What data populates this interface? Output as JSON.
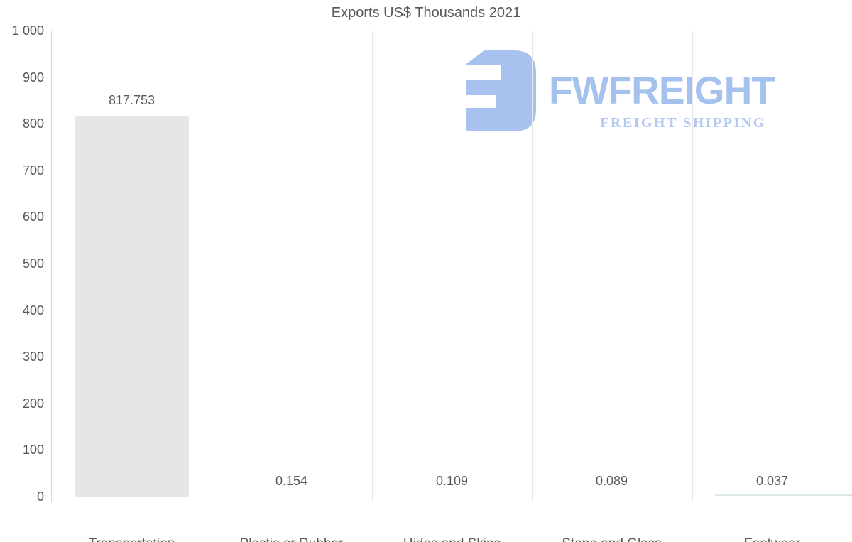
{
  "title": "Exports US$ Thousands 2021",
  "watermark": {
    "brand": "FWFREIGHT",
    "tagline": "FREIGHT SHIPPING",
    "icon_color": "#a7c2ee",
    "brand_color": "#a5c1ee",
    "tagline_color": "#b4c9f1"
  },
  "chart_data": {
    "type": "bar",
    "title": "Exports US$ Thousands 2021",
    "categories": [
      "Transportation",
      "Plastic or Rubber",
      "Hides and Skins",
      "Stone and Glass",
      "Footwear"
    ],
    "values": [
      817.753,
      0.154,
      0.109,
      0.089,
      0.037
    ],
    "value_labels": [
      "817.753",
      "0.154",
      "0.109",
      "0.089",
      "0.037"
    ],
    "xlabel": "",
    "ylabel": "",
    "ylim": [
      0,
      1000
    ],
    "yticks": [
      0,
      100,
      200,
      300,
      400,
      500,
      600,
      700,
      800,
      900,
      1000
    ],
    "ytick_labels": [
      "0",
      "100",
      "200",
      "300",
      "400",
      "500",
      "600",
      "700",
      "800",
      "900",
      "1 000"
    ],
    "grid": true,
    "legend": false,
    "bar_color": "#e6e6e6",
    "text_color": "#595959",
    "grid_color": "#e7e7e7",
    "axis_color": "#cfcfcf"
  }
}
